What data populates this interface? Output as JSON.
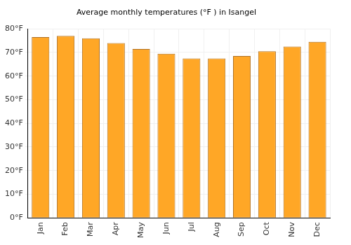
{
  "chart_data": {
    "type": "bar",
    "title": "Average monthly temperatures (°F ) in Isangel",
    "categories": [
      "Jan",
      "Feb",
      "Mar",
      "Apr",
      "May",
      "Jun",
      "Jul",
      "Aug",
      "Sep",
      "Oct",
      "Nov",
      "Dec"
    ],
    "values": [
      76.5,
      77,
      76,
      74,
      71.5,
      69.5,
      67.5,
      67.5,
      68.5,
      70.5,
      72.5,
      74.5
    ],
    "color": "#ffa726",
    "ylim": [
      0,
      80
    ],
    "yticks": [
      {
        "value": 0,
        "label": "0°F"
      },
      {
        "value": 10,
        "label": "10°F"
      },
      {
        "value": 20,
        "label": "20°F"
      },
      {
        "value": 30,
        "label": "30°F"
      },
      {
        "value": 40,
        "label": "40°F"
      },
      {
        "value": 50,
        "label": "50°F"
      },
      {
        "value": 60,
        "label": "60°F"
      },
      {
        "value": 70,
        "label": "70°F"
      },
      {
        "value": 80,
        "label": "80°F"
      }
    ],
    "grid": true
  }
}
